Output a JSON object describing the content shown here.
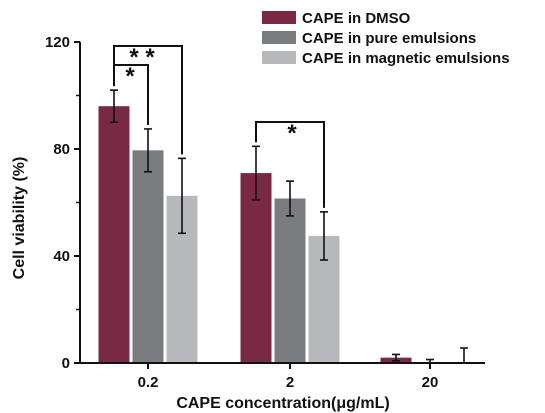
{
  "chart_data": {
    "type": "bar",
    "title": "",
    "xlabel": "CAPE concentration(μg/mL)",
    "ylabel": "Cell viability (%)",
    "ylim": [
      0,
      120
    ],
    "yticks": [
      "0",
      "40",
      "80",
      "120"
    ],
    "categories": [
      "0.2",
      "2",
      "20"
    ],
    "legend_position": "top-right",
    "grid": false,
    "series": [
      {
        "name": "CAPE in DMSO",
        "color": "#7a2944",
        "values": [
          96,
          71,
          2
        ],
        "errors": [
          6,
          10,
          1.2
        ]
      },
      {
        "name": "CAPE in pure emulsions",
        "color": "#7a7d80",
        "values": [
          79.5,
          61.5,
          0
        ],
        "errors": [
          8,
          6.5,
          1.3
        ]
      },
      {
        "name": "CAPE in magnetic emulsions",
        "color": "#b7b9bc",
        "values": [
          62.5,
          47.5,
          0.3
        ],
        "errors": [
          14,
          9,
          5.3
        ]
      }
    ],
    "significance": [
      {
        "category": "0.2",
        "from_series": 0,
        "to_series": 1,
        "label": "*"
      },
      {
        "category": "0.2",
        "from_series": 0,
        "to_series": 2,
        "label": "* *"
      },
      {
        "category": "2",
        "from_series": 0,
        "to_series": 2,
        "label": "*"
      }
    ]
  }
}
